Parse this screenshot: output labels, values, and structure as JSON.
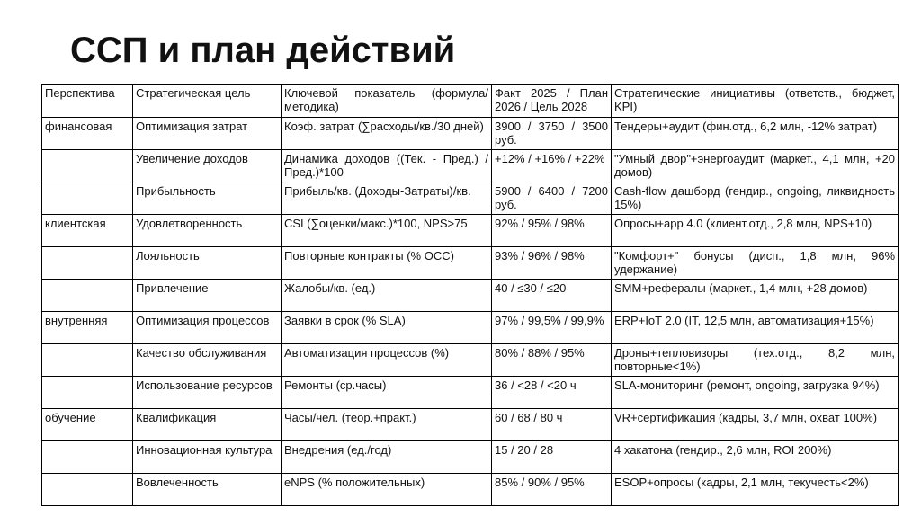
{
  "title": "ССП и план действий",
  "table": {
    "header": [
      "Перспектива",
      "Стратегическая цель",
      "Ключевой показатель (формула/методика)",
      "Факт 2025 / План 2026 / Цель 2028",
      "Стратегические инициативы (ответств., бюджет, KPI)"
    ],
    "rows": [
      [
        "финансовая",
        "Оптимизация затрат",
        "Коэф. затрат (∑расходы/кв./30 дней)",
        "3900 / 3750 / 3500 руб.",
        "Тендеры+аудит (фин.отд., 6,2 млн, -12% затрат)"
      ],
      [
        null,
        "Увеличение доходов",
        "Динамика доходов ((Тек. - Пред.) / Пред.)*100",
        "+12% / +16% / +22%",
        "\"Умный двор\"+энергоаудит (маркет., 4,1 млн, +20 домов)"
      ],
      [
        null,
        "Прибыльность",
        "Прибыль/кв. (Доходы-Затраты)/кв.",
        "5900 / 6400 / 7200 руб.",
        "Cash-flow дашборд (гендир., ongoing, ликвидность 15%)"
      ],
      [
        "клиентская",
        "Удовлетворенность",
        "CSI (∑оценки/макс.)*100, NPS>75",
        "92% / 95% / 98%",
        "Опросы+app 4.0 (клиент.отд., 2,8 млн, NPS+10)"
      ],
      [
        null,
        "Лояльность",
        "Повторные контракты (% ОСС)",
        "93% / 96% / 98%",
        "\"Комфорт+\" бонусы (дисп., 1,8 млн, 96% удержание)"
      ],
      [
        null,
        "Привлечение",
        "Жалобы/кв. (ед.)",
        "40 / ≤30 / ≤20",
        "SMM+рефералы (маркет., 1,4 млн, +28 домов)"
      ],
      [
        "внутренняя",
        "Оптимизация процессов",
        "Заявки в срок (% SLA)",
        "97% / 99,5% / 99,9%",
        "ERP+IoT 2.0 (IT, 12,5 млн, автоматизация+15%)"
      ],
      [
        null,
        "Качество обслуживания",
        "Автоматизация процессов (%)",
        "80% / 88% / 95%",
        "Дроны+тепловизоры (тех.отд., 8,2 млн, повторные<1%)"
      ],
      [
        null,
        "Использование ресурсов",
        "Ремонты (ср.часы)",
        "36 / <28 / <20 ч",
        "SLA-мониторинг (ремонт, ongoing, загрузка 94%)"
      ],
      [
        "обучение",
        "Квалификация",
        "Часы/чел. (теор.+практ.)",
        "60 / 68 / 80 ч",
        "VR+сертификация (кадры, 3,7 млн, охват 100%)"
      ],
      [
        null,
        "Инновационная культура",
        "Внедрения (ед./год)",
        "15 / 20 / 28",
        "4 хакатона (гендир., 2,6 млн, ROI 200%)"
      ],
      [
        null,
        "Вовлеченность",
        "eNPS (% положительных)",
        "85% / 90% / 95%",
        "ESOP+опросы (кадры, 2,1 млн, текучесть<2%)"
      ]
    ]
  }
}
